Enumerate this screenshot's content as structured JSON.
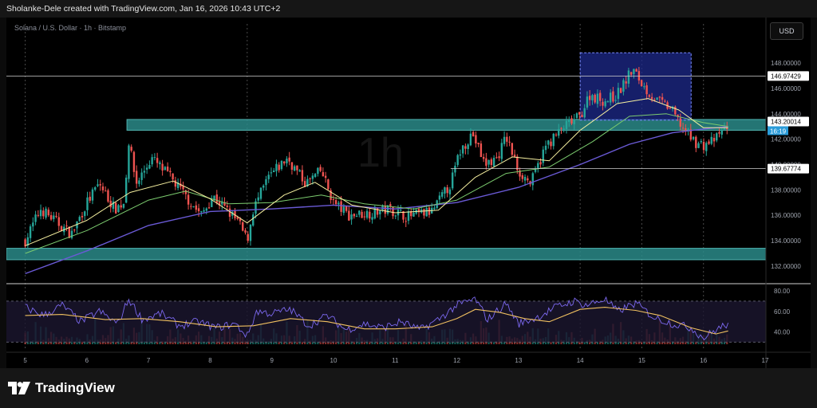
{
  "header": {
    "text": "Sholanke-Dele created with TradingView.com, Jan 16, 2026 10:43 UTC+2"
  },
  "symbol": {
    "text": "Solana / U.S. Dollar · 1h · Bitstamp"
  },
  "currency_button": "USD",
  "watermark": "1h",
  "branding": {
    "name": "TradingView"
  },
  "colors": {
    "up": "#26a69a",
    "down": "#ef5350",
    "zone": "#2a8a88",
    "box": "#1e2a8c",
    "ema_fast": "#f6f0a0",
    "ema_mid": "#7ccc6f",
    "ema_slow": "#6a5ad6",
    "rsi": "#7b68ee",
    "rsi_ma": "#f0c060"
  },
  "chart_data": {
    "type": "candlestick",
    "timeframe": "1h",
    "x_ticks": [
      "5",
      "6",
      "7",
      "8",
      "9",
      "10",
      "11",
      "12",
      "13",
      "14",
      "15",
      "16",
      "17"
    ],
    "y_ticks": [
      "148.00000",
      "146.00000",
      "144.00000",
      "142.00000",
      "140.00000",
      "138.00000",
      "136.00000",
      "134.00000",
      "132.00000"
    ],
    "price_labels": {
      "top_line": "146.97429",
      "current_price": "143.20014",
      "countdown": "16:19",
      "support_line": "139.67774"
    },
    "ylim": [
      130.8,
      150.2
    ],
    "zones": [
      {
        "name": "upper-zone",
        "from": 142.7,
        "to": 143.55
      },
      {
        "name": "lower-zone",
        "from": 132.5,
        "to": 133.4
      }
    ],
    "box": {
      "x_from": 14.0,
      "x_to": 15.8,
      "y_from": 143.5,
      "y_to": 148.8
    },
    "close_path": [
      [
        5.0,
        134.0
      ],
      [
        5.25,
        136.5
      ],
      [
        5.5,
        135.5
      ],
      [
        5.75,
        134.5
      ],
      [
        6.0,
        137.0
      ],
      [
        6.2,
        138.5
      ],
      [
        6.45,
        136.5
      ],
      [
        6.6,
        137.0
      ],
      [
        6.68,
        141.8
      ],
      [
        6.8,
        138.5
      ],
      [
        7.05,
        140.5
      ],
      [
        7.35,
        139.0
      ],
      [
        7.6,
        137.5
      ],
      [
        7.85,
        136.0
      ],
      [
        8.05,
        137.5
      ],
      [
        8.25,
        136.5
      ],
      [
        8.45,
        135.5
      ],
      [
        8.6,
        134.0
      ],
      [
        8.7,
        136.5
      ],
      [
        8.95,
        139.0
      ],
      [
        9.25,
        140.5
      ],
      [
        9.55,
        138.5
      ],
      [
        9.8,
        139.5
      ],
      [
        10.0,
        137.0
      ],
      [
        10.25,
        136.0
      ],
      [
        10.6,
        136.2
      ],
      [
        10.9,
        136.5
      ],
      [
        11.2,
        135.9
      ],
      [
        11.6,
        136.3
      ],
      [
        11.9,
        138.5
      ],
      [
        12.05,
        141.0
      ],
      [
        12.25,
        142.5
      ],
      [
        12.45,
        140.0
      ],
      [
        12.65,
        140.5
      ],
      [
        12.8,
        142.2
      ],
      [
        13.0,
        139.5
      ],
      [
        13.2,
        138.5
      ],
      [
        13.45,
        141.5
      ],
      [
        13.75,
        143.0
      ],
      [
        14.0,
        143.8
      ],
      [
        14.15,
        145.5
      ],
      [
        14.4,
        145.0
      ],
      [
        14.6,
        145.5
      ],
      [
        14.85,
        147.5
      ],
      [
        15.05,
        146.0
      ],
      [
        15.25,
        145.0
      ],
      [
        15.45,
        144.5
      ],
      [
        15.65,
        143.0
      ],
      [
        15.85,
        141.8
      ],
      [
        16.0,
        141.5
      ],
      [
        16.2,
        142.0
      ],
      [
        16.4,
        143.2
      ]
    ],
    "ema_fast_path": [
      [
        5.0,
        133.6
      ],
      [
        6.0,
        135.6
      ],
      [
        6.7,
        137.8
      ],
      [
        7.4,
        138.7
      ],
      [
        8.0,
        137.3
      ],
      [
        8.6,
        135.4
      ],
      [
        9.2,
        137.6
      ],
      [
        9.7,
        138.6
      ],
      [
        10.3,
        136.8
      ],
      [
        11.0,
        136.2
      ],
      [
        11.7,
        136.4
      ],
      [
        12.3,
        139.0
      ],
      [
        12.9,
        140.6
      ],
      [
        13.5,
        140.3
      ],
      [
        14.0,
        142.7
      ],
      [
        14.6,
        144.8
      ],
      [
        15.1,
        145.2
      ],
      [
        15.6,
        144.3
      ],
      [
        16.0,
        142.9
      ],
      [
        16.4,
        142.9
      ]
    ],
    "ema_mid_path": [
      [
        5.0,
        133.0
      ],
      [
        6.0,
        134.8
      ],
      [
        7.0,
        137.2
      ],
      [
        7.6,
        137.9
      ],
      [
        8.3,
        136.9
      ],
      [
        9.0,
        137.0
      ],
      [
        9.8,
        137.6
      ],
      [
        10.5,
        136.9
      ],
      [
        11.3,
        136.5
      ],
      [
        12.0,
        137.2
      ],
      [
        12.8,
        139.3
      ],
      [
        13.5,
        139.8
      ],
      [
        14.2,
        141.8
      ],
      [
        14.8,
        143.8
      ],
      [
        15.4,
        144.0
      ],
      [
        16.0,
        143.3
      ],
      [
        16.4,
        143.0
      ]
    ],
    "ema_slow_path": [
      [
        5.0,
        131.4
      ],
      [
        6.0,
        133.2
      ],
      [
        7.0,
        135.2
      ],
      [
        8.0,
        136.3
      ],
      [
        9.0,
        136.5
      ],
      [
        10.0,
        136.8
      ],
      [
        11.0,
        136.5
      ],
      [
        12.0,
        137.0
      ],
      [
        13.0,
        138.2
      ],
      [
        14.0,
        140.0
      ],
      [
        14.8,
        141.6
      ],
      [
        15.5,
        142.5
      ],
      [
        16.0,
        142.8
      ],
      [
        16.4,
        143.0
      ]
    ],
    "rsi": {
      "y_ticks": [
        "80.00",
        "60.00",
        "40.00"
      ],
      "ylim": [
        28,
        80
      ],
      "rsi_ma_path": [
        [
          5.0,
          56
        ],
        [
          5.6,
          57
        ],
        [
          6.3,
          52
        ],
        [
          6.9,
          53
        ],
        [
          7.5,
          50
        ],
        [
          8.1,
          45
        ],
        [
          8.7,
          46
        ],
        [
          9.3,
          53
        ],
        [
          9.9,
          50
        ],
        [
          10.5,
          43
        ],
        [
          11.0,
          43
        ],
        [
          11.6,
          45
        ],
        [
          12.0,
          53
        ],
        [
          12.3,
          62
        ],
        [
          12.7,
          59
        ],
        [
          13.1,
          53
        ],
        [
          13.5,
          50
        ],
        [
          14.0,
          62
        ],
        [
          14.4,
          64
        ],
        [
          14.9,
          61
        ],
        [
          15.3,
          56
        ],
        [
          15.8,
          44
        ],
        [
          16.2,
          38
        ],
        [
          16.4,
          41
        ]
      ],
      "rsi_path": [
        [
          5.0,
          64
        ],
        [
          5.3,
          56
        ],
        [
          5.6,
          66
        ],
        [
          5.9,
          50
        ],
        [
          6.2,
          60
        ],
        [
          6.5,
          48
        ],
        [
          6.68,
          72
        ],
        [
          6.9,
          52
        ],
        [
          7.2,
          58
        ],
        [
          7.5,
          46
        ],
        [
          7.8,
          50
        ],
        [
          8.1,
          44
        ],
        [
          8.4,
          48
        ],
        [
          8.6,
          36
        ],
        [
          8.75,
          60
        ],
        [
          9.0,
          58
        ],
        [
          9.3,
          62
        ],
        [
          9.6,
          46
        ],
        [
          9.9,
          56
        ],
        [
          10.2,
          42
        ],
        [
          10.5,
          48
        ],
        [
          10.8,
          44
        ],
        [
          11.1,
          50
        ],
        [
          11.4,
          42
        ],
        [
          11.7,
          52
        ],
        [
          12.0,
          66
        ],
        [
          12.3,
          72
        ],
        [
          12.5,
          52
        ],
        [
          12.8,
          68
        ],
        [
          13.0,
          48
        ],
        [
          13.3,
          54
        ],
        [
          13.6,
          64
        ],
        [
          13.9,
          70
        ],
        [
          14.1,
          66
        ],
        [
          14.4,
          72
        ],
        [
          14.6,
          60
        ],
        [
          14.9,
          68
        ],
        [
          15.2,
          54
        ],
        [
          15.5,
          48
        ],
        [
          15.8,
          44
        ],
        [
          16.0,
          34
        ],
        [
          16.2,
          42
        ],
        [
          16.4,
          48
        ]
      ]
    }
  }
}
